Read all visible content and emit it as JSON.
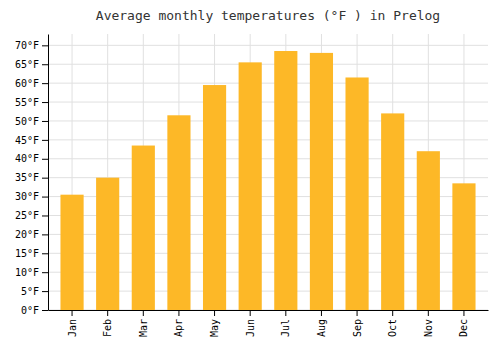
{
  "chart_data": {
    "type": "bar",
    "title": "Average monthly temperatures (°F ) in Prelog",
    "categories": [
      "Jan",
      "Feb",
      "Mar",
      "Apr",
      "May",
      "Jun",
      "Jul",
      "Aug",
      "Sep",
      "Oct",
      "Nov",
      "Dec"
    ],
    "values": [
      30.5,
      35.0,
      43.5,
      51.5,
      59.5,
      65.5,
      68.5,
      68.0,
      61.5,
      52.0,
      42.0,
      33.5
    ],
    "color": "#FDB827",
    "ylim": [
      0,
      73
    ],
    "yticks": [
      {
        "value": 0,
        "label": "0°F"
      },
      {
        "value": 5,
        "label": "5°F"
      },
      {
        "value": 10,
        "label": "10°F"
      },
      {
        "value": 15,
        "label": "15°F"
      },
      {
        "value": 20,
        "label": "20°F"
      },
      {
        "value": 25,
        "label": "25°F"
      },
      {
        "value": 30,
        "label": "30°F"
      },
      {
        "value": 35,
        "label": "35°F"
      },
      {
        "value": 40,
        "label": "40°F"
      },
      {
        "value": 45,
        "label": "45°F"
      },
      {
        "value": 50,
        "label": "50°F"
      },
      {
        "value": 55,
        "label": "55°F"
      },
      {
        "value": 60,
        "label": "60°F"
      },
      {
        "value": 65,
        "label": "65°F"
      },
      {
        "value": 70,
        "label": "70°F"
      }
    ],
    "grid": true
  }
}
